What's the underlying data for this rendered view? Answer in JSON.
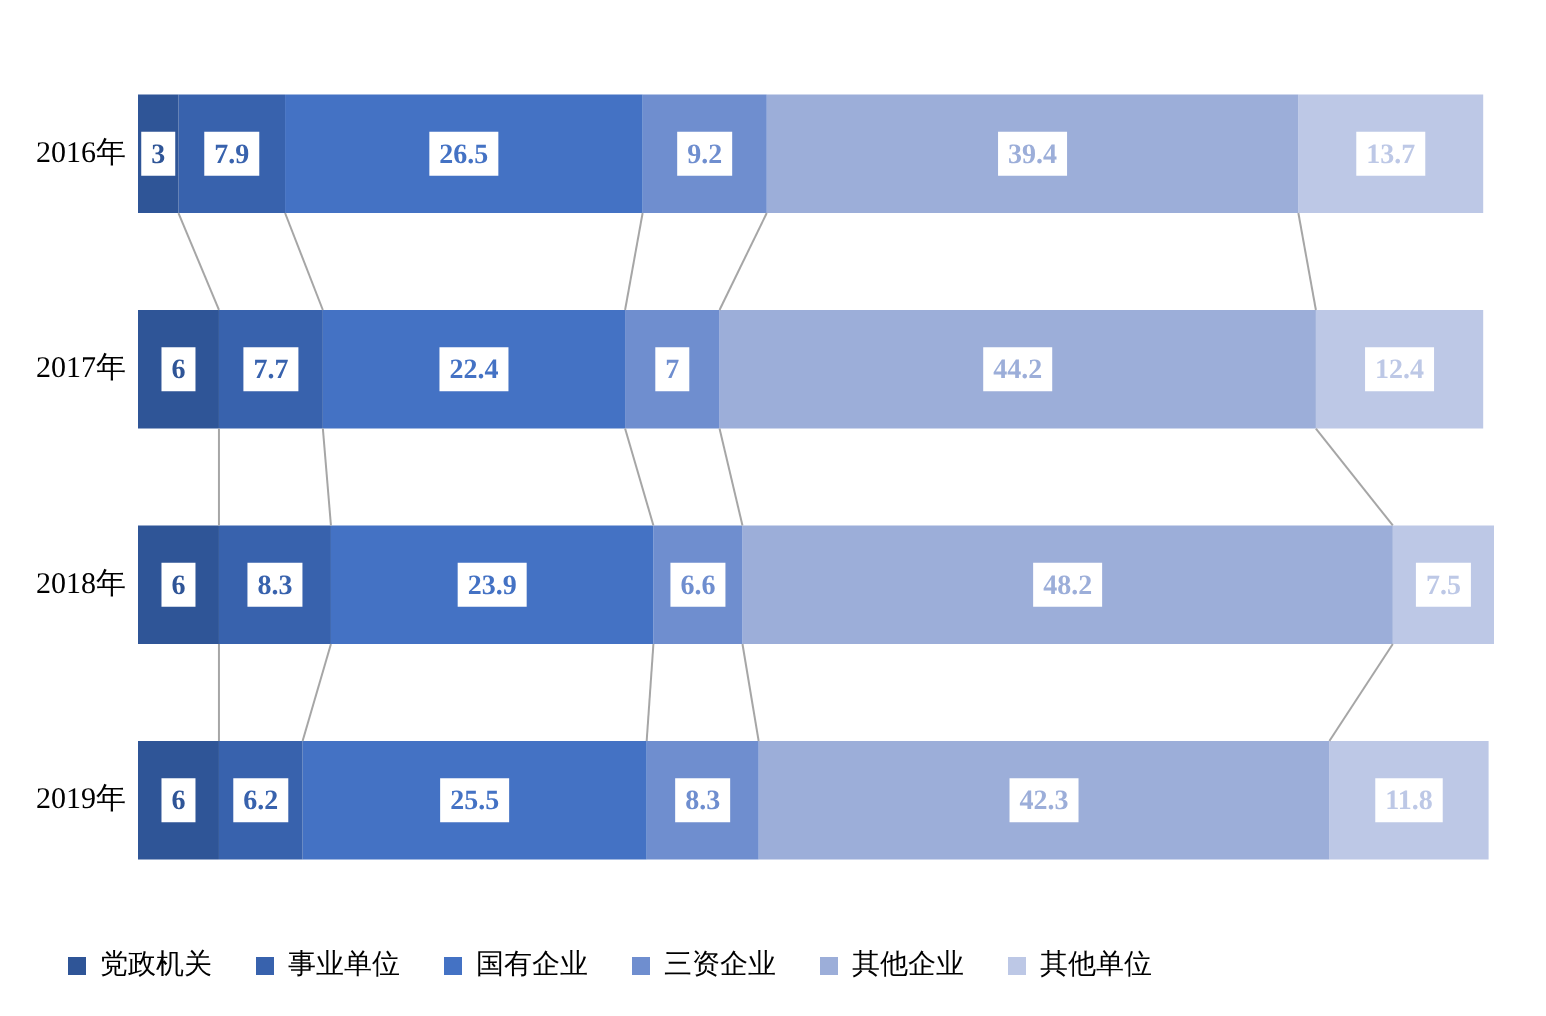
{
  "chart_data": {
    "type": "bar",
    "orientation": "horizontal",
    "stacked": true,
    "data_labels": true,
    "legend": "bottom",
    "grid": false,
    "tick_labels": "y",
    "xlim": [
      0,
      100.5
    ],
    "categories": [
      "2016年",
      "2017年",
      "2018年",
      "2019年"
    ],
    "series": [
      {
        "name": "党政机关",
        "color": "#2f5597",
        "values": [
          3,
          6,
          6,
          6
        ]
      },
      {
        "name": "事业单位",
        "color": "#3862ad",
        "values": [
          7.9,
          7.7,
          8.3,
          6.2
        ]
      },
      {
        "name": "国有企业",
        "color": "#4472c4",
        "values": [
          26.5,
          22.4,
          23.9,
          25.5
        ]
      },
      {
        "name": "三资企业",
        "color": "#6f8ecf",
        "values": [
          9.2,
          7,
          6.6,
          8.3
        ]
      },
      {
        "name": "其他企业",
        "color": "#9caed9",
        "values": [
          39.4,
          44.2,
          48.2,
          42.3
        ]
      },
      {
        "name": "其他单位",
        "color": "#bdc8e6",
        "values": [
          13.7,
          12.4,
          7.5,
          11.8
        ]
      }
    ]
  }
}
